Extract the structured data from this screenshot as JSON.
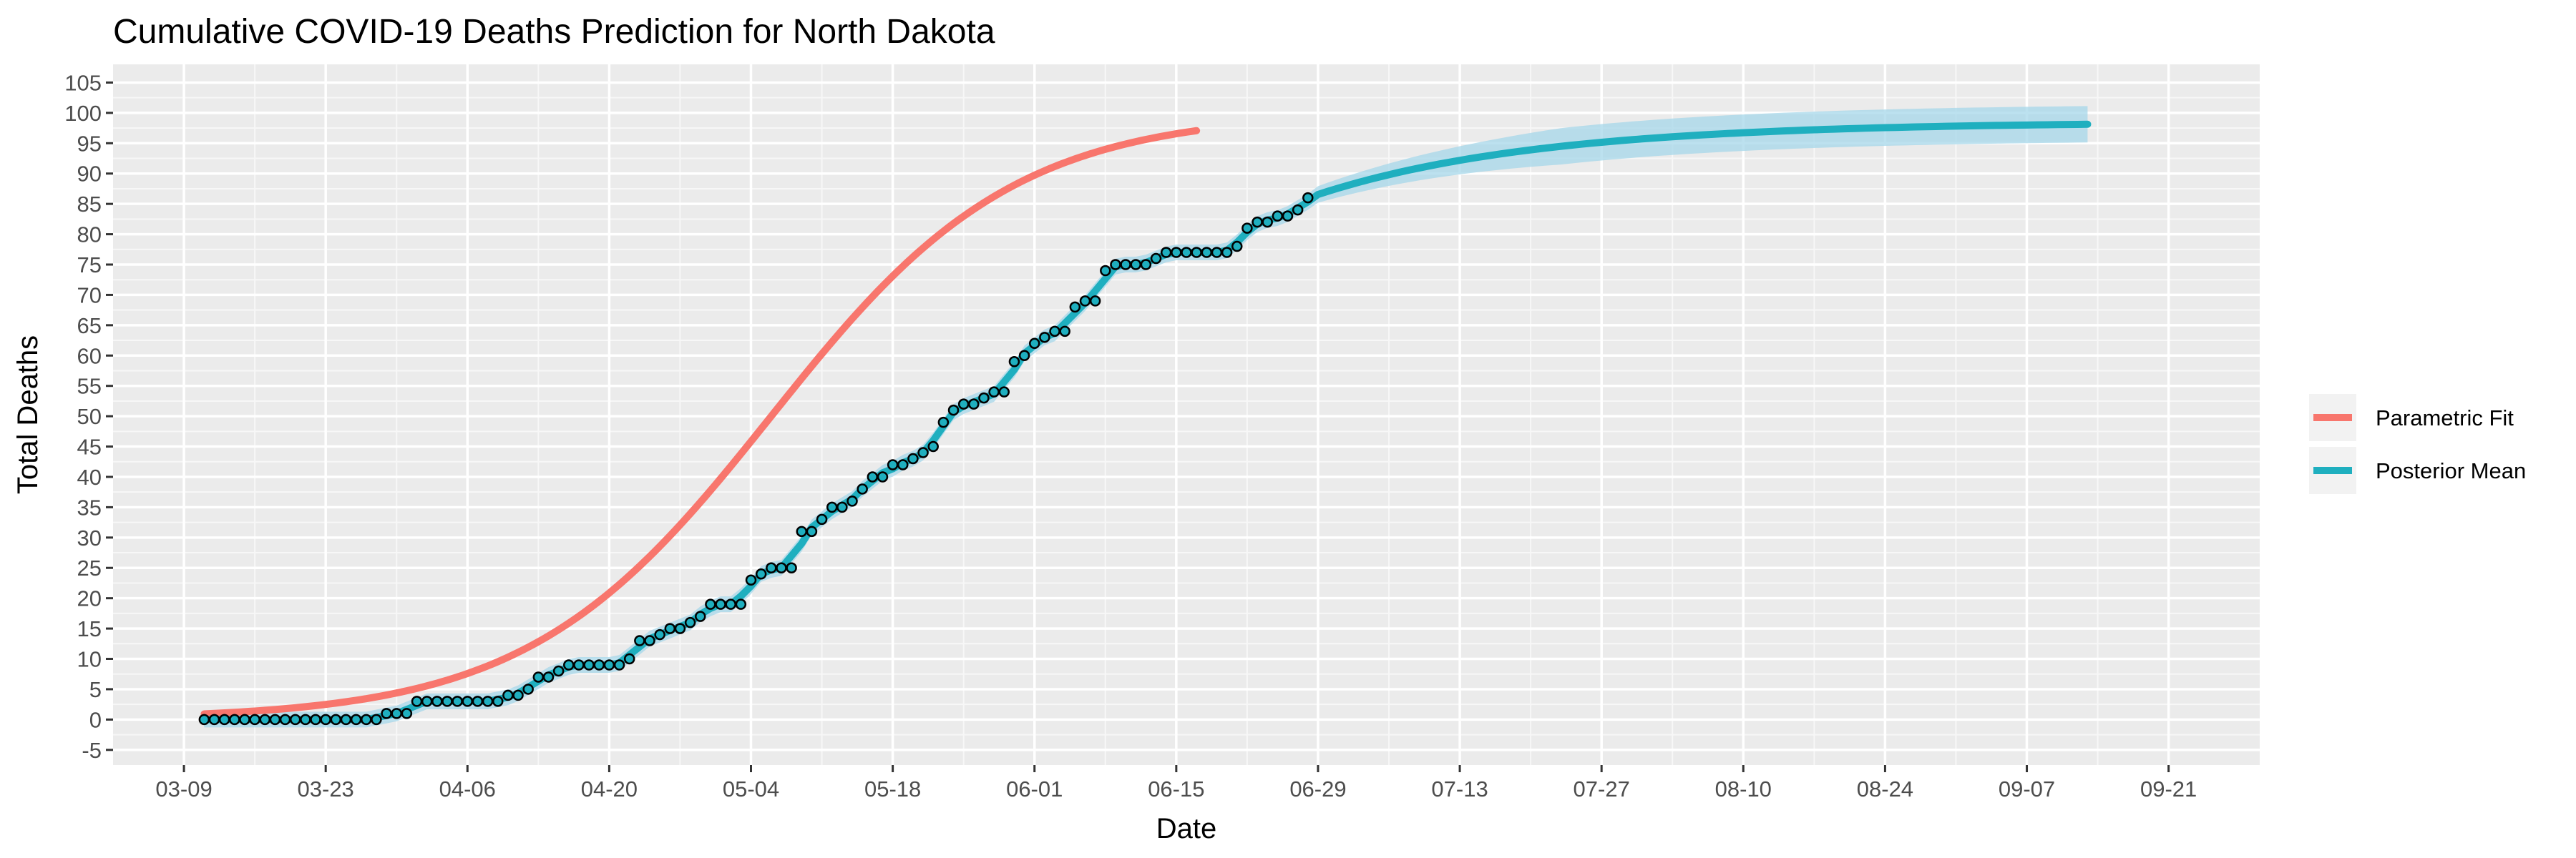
{
  "chart_data": {
    "type": "line",
    "title": "Cumulative COVID-19 Deaths Prediction for North Dakota",
    "xlabel": "Date",
    "ylabel": "Total Deaths",
    "x_tick_labels": [
      "03-09",
      "03-23",
      "04-06",
      "04-20",
      "05-04",
      "05-18",
      "06-01",
      "06-15",
      "06-29",
      "07-13",
      "07-27",
      "08-10",
      "08-24",
      "09-07",
      "09-21"
    ],
    "x_ticks_day": [
      0,
      14,
      28,
      42,
      56,
      70,
      84,
      98,
      112,
      126,
      140,
      154,
      168,
      182,
      196
    ],
    "x_range_day": [
      -7,
      205
    ],
    "y_ticks": [
      -5,
      0,
      5,
      10,
      15,
      20,
      25,
      30,
      35,
      40,
      45,
      50,
      55,
      60,
      65,
      70,
      75,
      80,
      85,
      90,
      95,
      100,
      105
    ],
    "ylim": [
      -7.5,
      108
    ],
    "grid": true,
    "legend": {
      "position": "right",
      "entries": [
        {
          "label": "Parametric Fit",
          "color": "#F8766D"
        },
        {
          "label": "Posterior Mean",
          "color": "#1FAFBF"
        }
      ]
    },
    "observed": {
      "start_date": "03-11",
      "values": [
        0,
        0,
        0,
        0,
        0,
        0,
        0,
        0,
        0,
        0,
        0,
        0,
        0,
        0,
        0,
        0,
        0,
        0,
        1,
        1,
        1,
        3,
        3,
        3,
        3,
        3,
        3,
        3,
        3,
        3,
        4,
        4,
        5,
        7,
        7,
        8,
        9,
        9,
        9,
        9,
        9,
        9,
        10,
        13,
        13,
        14,
        15,
        15,
        16,
        17,
        19,
        19,
        19,
        19,
        23,
        24,
        25,
        25,
        25,
        31,
        31,
        33,
        35,
        35,
        36,
        38,
        40,
        40,
        42,
        42,
        43,
        44,
        45,
        49,
        51,
        52,
        52,
        53,
        54,
        54,
        59,
        60,
        62,
        63,
        64,
        64,
        68,
        69,
        69,
        74,
        75,
        75,
        75,
        75,
        76,
        77,
        77,
        77,
        77,
        77,
        77,
        77,
        78,
        81,
        82,
        82,
        83,
        83,
        84,
        86
      ]
    },
    "series": [
      {
        "name": "Parametric Fit",
        "color": "#F8766D",
        "x_start": "03-11",
        "x_end": "06-25",
        "model": "logistic",
        "asymptote": 100,
        "midpoint": "05-14",
        "scale_days": 12
      },
      {
        "name": "Posterior Mean",
        "color": "#1FAFBF",
        "x_start": "03-11",
        "x_end": "09-21",
        "endpoint": 98.5,
        "band_halfwidth_end": 3
      }
    ]
  }
}
